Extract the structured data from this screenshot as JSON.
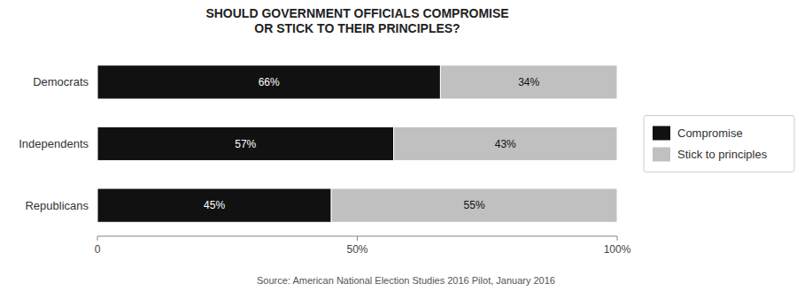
{
  "chart_data": {
    "type": "bar",
    "orientation": "horizontal",
    "stacked": true,
    "title": "SHOULD GOVERNMENT OFFICIALS COMPROMISE\nOR STICK TO THEIR PRINCIPLES?",
    "categories": [
      "Democrats",
      "Independents",
      "Republicans"
    ],
    "series": [
      {
        "name": "Compromise",
        "color": "#111111",
        "values": [
          66,
          57,
          45
        ],
        "value_labels": [
          "66%",
          "57%",
          "45%"
        ]
      },
      {
        "name": "Stick to principles",
        "color": "#c0c0c0",
        "values": [
          34,
          43,
          55
        ],
        "value_labels": [
          "34%",
          "43%",
          "55%"
        ]
      }
    ],
    "xlim": [
      0,
      100
    ],
    "xticks": [
      0,
      {
        "value": 50,
        "label": "50%"
      },
      {
        "value": 100,
        "label": "100%"
      }
    ],
    "grid": false,
    "legend": "right",
    "data_labels": true,
    "annotations": [
      "Source: American National Election Studies 2016 Pilot, January 2016"
    ]
  }
}
